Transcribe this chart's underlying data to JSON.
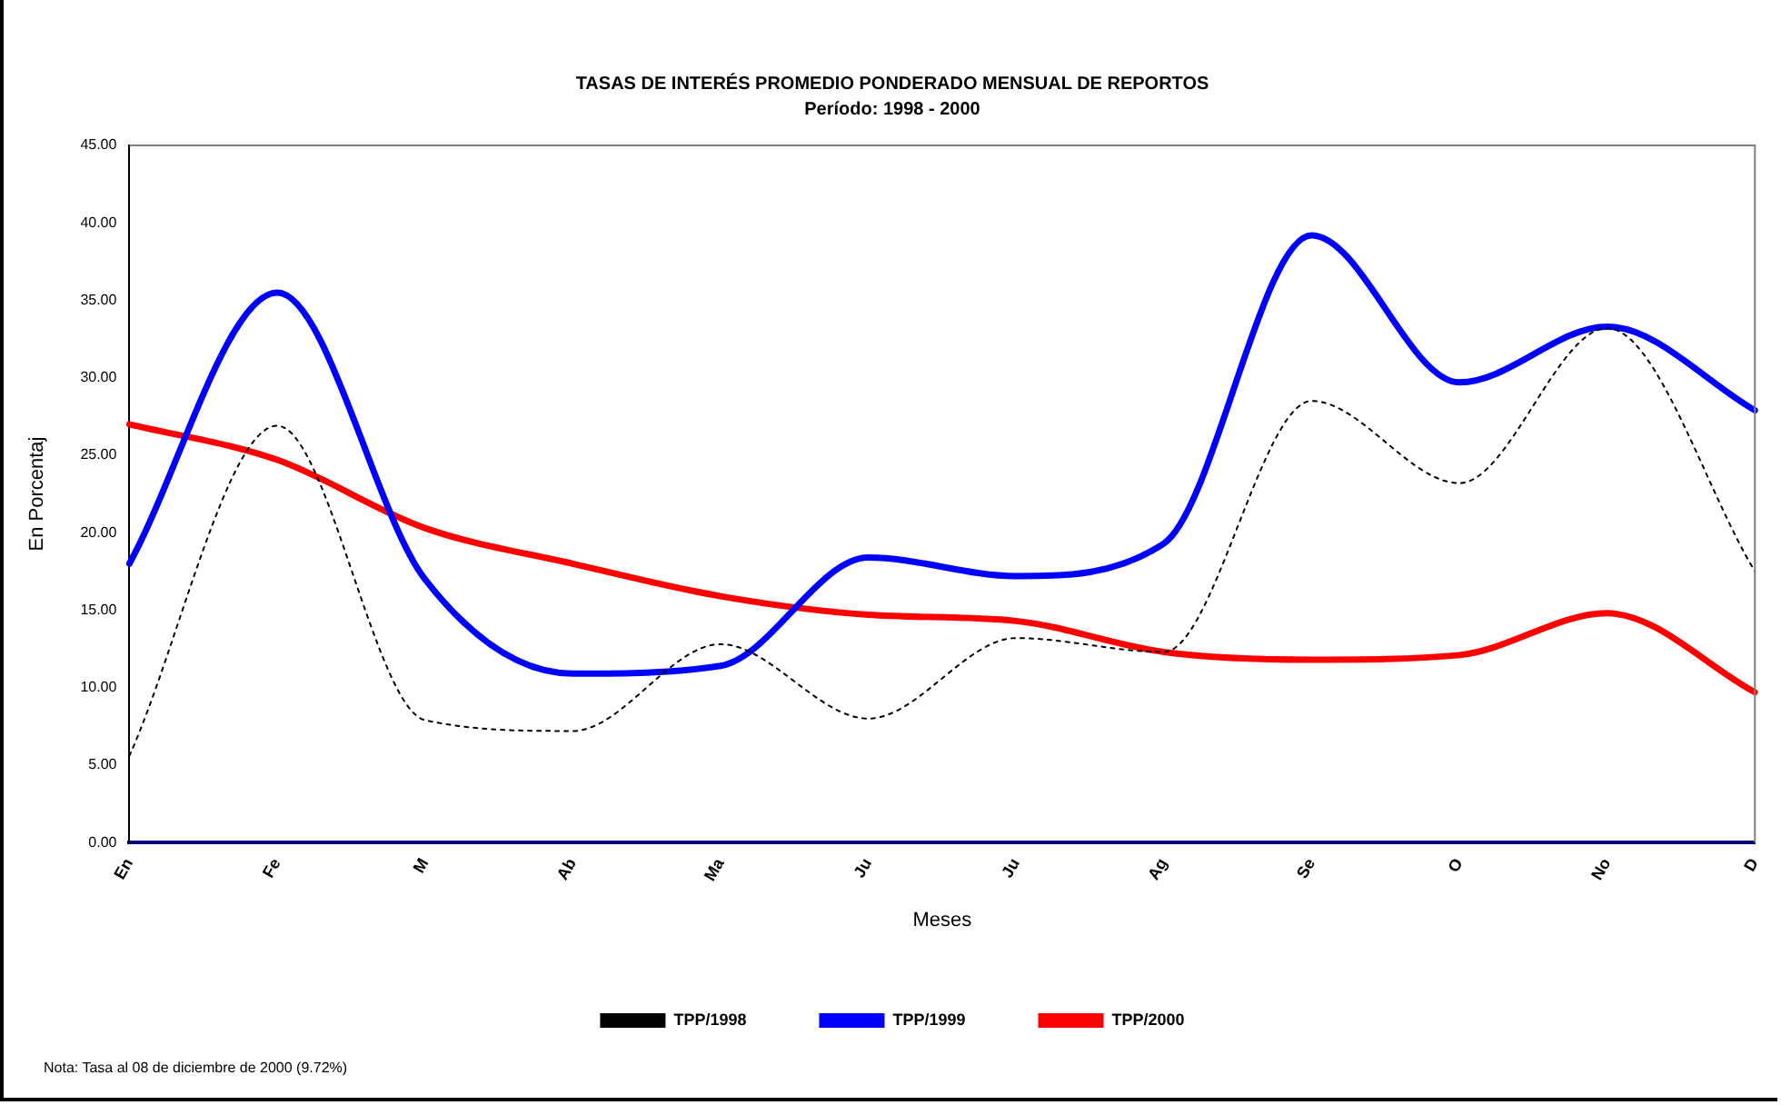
{
  "chart_data": {
    "type": "line",
    "title": "TASAS DE INTERÉS PROMEDIO PONDERADO MENSUAL DE REPORTOS",
    "subtitle": "Período: 1998 - 2000",
    "xlabel": "Meses",
    "ylabel": "En Porcentaj",
    "categories": [
      "En",
      "Fe",
      "M",
      "Ab",
      "Ma",
      "Ju",
      "Ju",
      "Ag",
      "Se",
      "O",
      "No",
      "D"
    ],
    "series": [
      {
        "name": "TPP/1998",
        "color": "#000000",
        "line_style": "dotted",
        "values": [
          5.6,
          26.9,
          7.9,
          7.2,
          12.8,
          8.0,
          13.2,
          12.3,
          28.5,
          23.2,
          33.2,
          17.5
        ]
      },
      {
        "name": "TPP/1999",
        "color": "#0000ff",
        "line_style": "solid",
        "values": [
          18.0,
          35.5,
          17.0,
          10.9,
          11.4,
          18.4,
          17.2,
          19.3,
          39.2,
          29.7,
          33.3,
          27.9
        ]
      },
      {
        "name": "TPP/2000",
        "color": "#ff0000",
        "line_style": "solid",
        "values": [
          27.0,
          24.7,
          20.3,
          18.0,
          15.9,
          14.7,
          14.3,
          12.3,
          11.8,
          12.1,
          14.8,
          9.7
        ]
      }
    ],
    "ylim": [
      0,
      45
    ],
    "yticks": [
      {
        "value": 0,
        "label": "0.00"
      },
      {
        "value": 5,
        "label": "5.00"
      },
      {
        "value": 10,
        "label": "10.00"
      },
      {
        "value": 15,
        "label": "15.00"
      },
      {
        "value": 20,
        "label": "20.00"
      },
      {
        "value": 25,
        "label": "25.00"
      },
      {
        "value": 30,
        "label": "30.00"
      },
      {
        "value": 35,
        "label": "35.00"
      },
      {
        "value": 40,
        "label": "40.00"
      },
      {
        "value": 45,
        "label": "45.00"
      }
    ],
    "grid": false,
    "legend": "bottom",
    "marker": "none",
    "annotations": [
      "Nota: Tasa al 08 de diciembre de 2000 (9.72%)"
    ]
  }
}
